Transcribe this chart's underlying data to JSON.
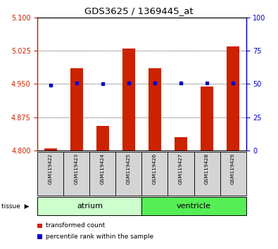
{
  "title": "GDS3625 / 1369445_at",
  "samples": [
    "GSM119422",
    "GSM119423",
    "GSM119424",
    "GSM119425",
    "GSM119426",
    "GSM119427",
    "GSM119428",
    "GSM119429"
  ],
  "red_values": [
    4.805,
    4.985,
    4.855,
    5.03,
    4.985,
    4.83,
    4.945,
    5.035
  ],
  "blue_values": [
    49,
    51,
    50,
    51,
    51,
    51,
    51,
    51
  ],
  "ylim_left": [
    4.8,
    5.1
  ],
  "ylim_right": [
    0,
    100
  ],
  "yticks_left": [
    4.8,
    4.875,
    4.95,
    5.025,
    5.1
  ],
  "yticks_right": [
    0,
    25,
    50,
    75,
    100
  ],
  "bar_color": "#cc2200",
  "dot_color": "#0000cc",
  "bar_width": 0.5,
  "atrium_color": "#ccffcc",
  "ventricle_color": "#55ee55",
  "sample_box_color": "#d4d4d4",
  "legend_items": [
    {
      "label": "transformed count",
      "color": "#cc2200"
    },
    {
      "label": "percentile rank within the sample",
      "color": "#0000cc"
    }
  ]
}
